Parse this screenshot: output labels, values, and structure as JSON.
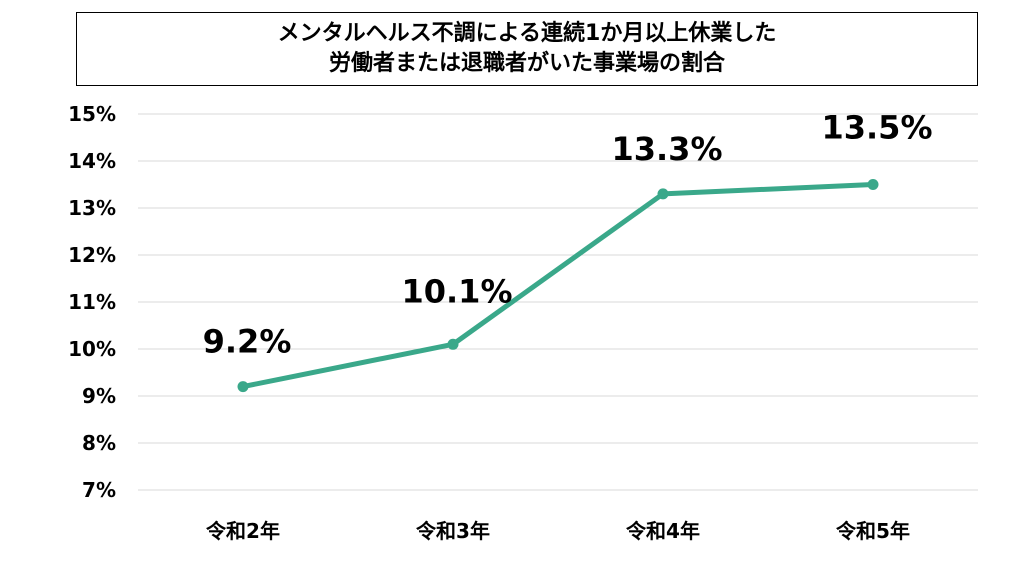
{
  "chart_data": {
    "type": "line",
    "title_lines": [
      "メンタルヘルス不調による連続1か月以上休業した",
      "労働者または退職者がいた事業場の割合"
    ],
    "categories": [
      "令和2年",
      "令和3年",
      "令和4年",
      "令和5年"
    ],
    "series": [
      {
        "values": [
          9.2,
          10.1,
          13.3,
          13.5
        ],
        "data_labels": [
          "9.2%",
          "10.1%",
          "13.3%",
          "13.5%"
        ],
        "color": "#3aa88a"
      }
    ],
    "ylim": [
      7,
      15
    ],
    "y_ticks": [
      7,
      8,
      9,
      10,
      11,
      12,
      13,
      14,
      15
    ],
    "y_tick_labels": [
      "7%",
      "8%",
      "9%",
      "10%",
      "11%",
      "12%",
      "13%",
      "14%",
      "15%"
    ],
    "xlabel": "",
    "ylabel": "",
    "grid": true,
    "legend": "none"
  }
}
